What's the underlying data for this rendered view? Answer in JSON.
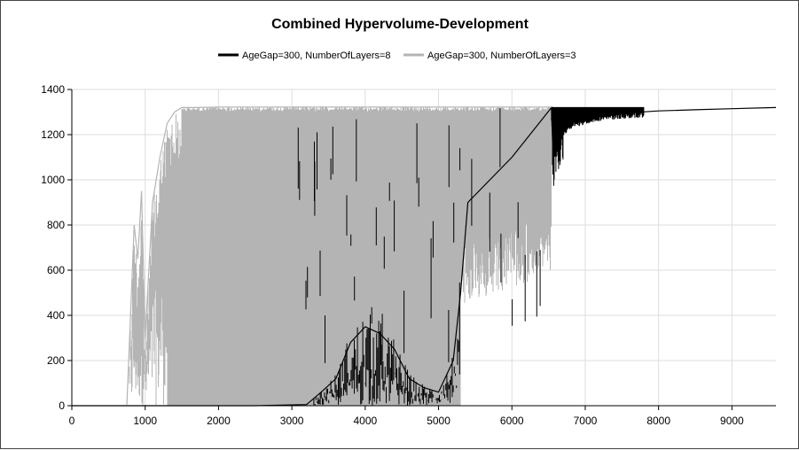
{
  "chart_data": {
    "type": "line",
    "title": "Combined Hypervolume-Development",
    "xlabel": "",
    "ylabel": "",
    "xlim": [
      0,
      9600
    ],
    "ylim": [
      0,
      1400
    ],
    "x_ticks": [
      0,
      1000,
      2000,
      3000,
      4000,
      5000,
      6000,
      7000,
      8000,
      9000
    ],
    "y_ticks": [
      0,
      200,
      400,
      600,
      800,
      1000,
      1200,
      1400
    ],
    "grid": true,
    "legend_position": "top-center",
    "series": [
      {
        "name": "AgeGap=300, NumberOfLayers=8",
        "color": "#000000",
        "x": [
          0,
          2500,
          3200,
          3400,
          3600,
          3800,
          4000,
          4200,
          4400,
          4600,
          4800,
          5000,
          5200,
          5300,
          5400,
          6000,
          6540,
          6560,
          6600,
          6700,
          6800,
          7000,
          7200,
          7500,
          8000,
          8500,
          9000,
          9600
        ],
        "y": [
          0,
          0,
          5,
          60,
          120,
          280,
          350,
          320,
          250,
          120,
          80,
          60,
          200,
          500,
          900,
          1100,
          1320,
          1100,
          1180,
          1220,
          1250,
          1270,
          1285,
          1295,
          1305,
          1310,
          1315,
          1320
        ]
      },
      {
        "name": "AgeGap=300, NumberOfLayers=3",
        "color": "#b4b4b4",
        "x": [
          0,
          750,
          800,
          850,
          900,
          950,
          1000,
          1100,
          1200,
          1300,
          1400,
          1500,
          1700,
          2000,
          2500,
          3000,
          3500,
          4000,
          4500,
          5000,
          5500,
          6000,
          6400,
          6540
        ],
        "y": [
          0,
          0,
          400,
          800,
          650,
          950,
          300,
          900,
          1100,
          1250,
          1300,
          1320,
          1320,
          1322,
          1322,
          1322,
          1322,
          1322,
          1322,
          1322,
          1322,
          1322,
          1322,
          1322
        ]
      }
    ]
  }
}
